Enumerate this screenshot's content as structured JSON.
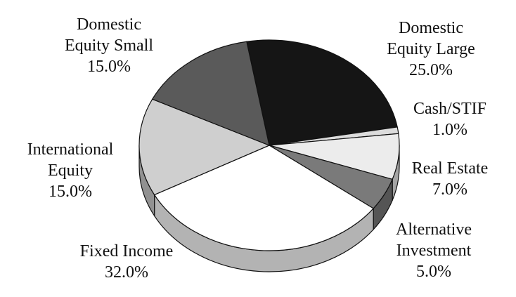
{
  "chart_data": {
    "type": "pie",
    "categories": [
      "Domestic Equity Large",
      "Cash/STIF",
      "Real Estate",
      "Alternative Investment",
      "Fixed Income",
      "International Equity",
      "Domestic Equity Small"
    ],
    "values": [
      25.0,
      1.0,
      7.0,
      5.0,
      32.0,
      15.0,
      15.0
    ],
    "value_labels": [
      "25.0%",
      "1.0%",
      "7.0%",
      "5.0%",
      "32.0%",
      "15.0%",
      "15.0%"
    ],
    "colors": [
      "#151515",
      "#dcdcdc",
      "#ececec",
      "#7a7a7a",
      "#ffffff",
      "#cfcfcf",
      "#5a5a5a"
    ]
  }
}
